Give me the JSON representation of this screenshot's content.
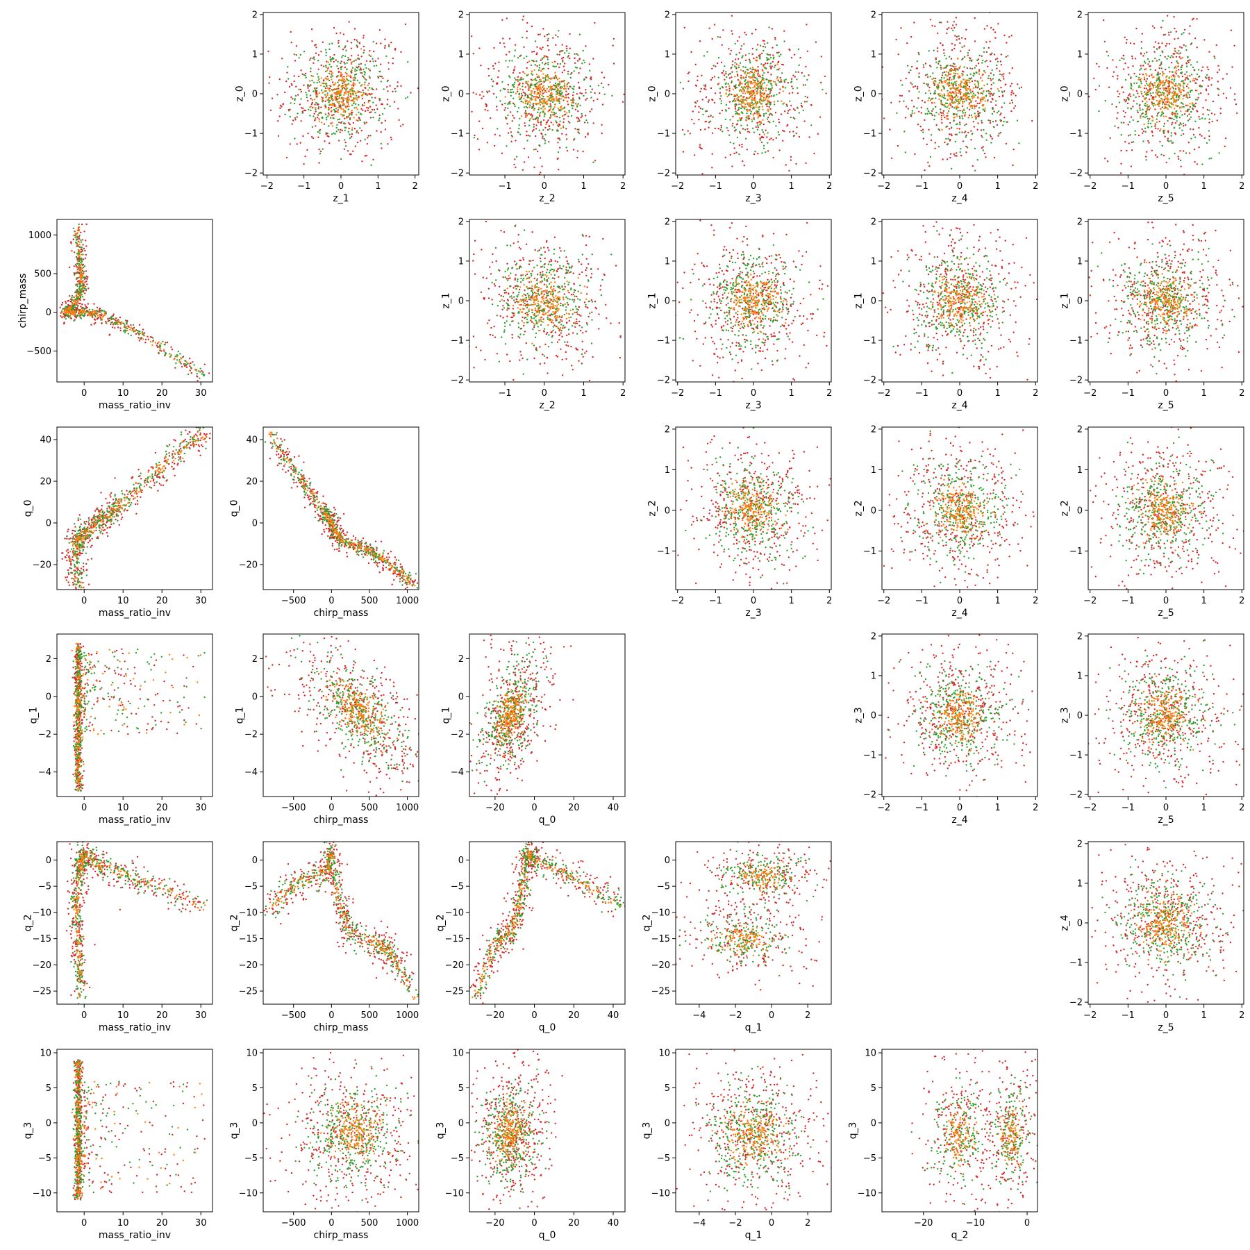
{
  "palette": {
    "red": "#d62728",
    "green": "#2ca02c",
    "orange": "#ff7f0e"
  },
  "chart_data": [
    {
      "type": "scatter",
      "xlabel": "z_1",
      "ylabel": "z_0",
      "xlim": [
        -2.1,
        2.1
      ],
      "ylim": [
        -2.05,
        2.05
      ],
      "xticks": [
        -2,
        -1,
        0,
        1,
        2
      ],
      "yticks": [
        -2,
        -1,
        0,
        1,
        2
      ],
      "distribution": "gaussian-blob",
      "center": [
        0,
        0
      ],
      "spread": [
        0.6,
        0.6
      ]
    },
    {
      "type": "scatter",
      "xlabel": "z_2",
      "ylabel": "z_0",
      "xlim": [
        -1.9,
        2.05
      ],
      "ylim": [
        -2.05,
        2.05
      ],
      "xticks": [
        -1,
        0,
        1,
        2
      ],
      "yticks": [
        -2,
        -1,
        0,
        1,
        2
      ],
      "distribution": "gaussian-blob",
      "center": [
        0,
        0
      ],
      "spread": [
        0.6,
        0.6
      ]
    },
    {
      "type": "scatter",
      "xlabel": "z_3",
      "ylabel": "z_0",
      "xlim": [
        -2.05,
        2.05
      ],
      "ylim": [
        -2.05,
        2.05
      ],
      "xticks": [
        -2,
        -1,
        0,
        1,
        2
      ],
      "yticks": [
        -2,
        -1,
        0,
        1,
        2
      ],
      "distribution": "gaussian-blob",
      "center": [
        0,
        0
      ],
      "spread": [
        0.6,
        0.6
      ]
    },
    {
      "type": "scatter",
      "xlabel": "z_4",
      "ylabel": "z_0",
      "xlim": [
        -2.05,
        2.05
      ],
      "ylim": [
        -2.05,
        2.05
      ],
      "xticks": [
        -2,
        -1,
        0,
        1,
        2
      ],
      "yticks": [
        -2,
        -1,
        0,
        1,
        2
      ],
      "distribution": "gaussian-blob",
      "center": [
        0,
        0
      ],
      "spread": [
        0.6,
        0.6
      ]
    },
    {
      "type": "scatter",
      "xlabel": "z_5",
      "ylabel": "z_0",
      "xlim": [
        -2.05,
        2.05
      ],
      "ylim": [
        -2.05,
        2.05
      ],
      "xticks": [
        -2,
        -1,
        0,
        1,
        2
      ],
      "yticks": [
        -2,
        -1,
        0,
        1,
        2
      ],
      "distribution": "gaussian-blob",
      "center": [
        0,
        0
      ],
      "spread": [
        0.6,
        0.6
      ]
    },
    {
      "type": "scatter",
      "xlabel": "mass_ratio_inv",
      "ylabel": "chirp_mass",
      "xlim": [
        -7,
        33
      ],
      "ylim": [
        -900,
        1200
      ],
      "xticks": [
        0,
        10,
        20,
        30
      ],
      "yticks": [
        -500,
        0,
        500,
        1000
      ],
      "distribution": "polyline",
      "path": [
        [
          -2,
          1100
        ],
        [
          -1,
          600
        ],
        [
          -0.5,
          300
        ],
        [
          -3,
          80
        ],
        [
          -5,
          0
        ],
        [
          0,
          0
        ],
        [
          5,
          -40
        ],
        [
          15,
          -300
        ],
        [
          31,
          -820
        ]
      ],
      "noise": [
        0.6,
        40
      ]
    },
    {
      "type": "scatter",
      "xlabel": "z_2",
      "ylabel": "z_1",
      "xlim": [
        -1.9,
        2.05
      ],
      "ylim": [
        -2.05,
        2.05
      ],
      "xticks": [
        -1,
        0,
        1,
        2
      ],
      "yticks": [
        -2,
        -1,
        0,
        1,
        2
      ],
      "distribution": "gaussian-blob",
      "center": [
        0,
        0
      ],
      "spread": [
        0.6,
        0.6
      ]
    },
    {
      "type": "scatter",
      "xlabel": "z_3",
      "ylabel": "z_1",
      "xlim": [
        -2.05,
        2.05
      ],
      "ylim": [
        -2.05,
        2.05
      ],
      "xticks": [
        -2,
        -1,
        0,
        1,
        2
      ],
      "yticks": [
        -2,
        -1,
        0,
        1,
        2
      ],
      "distribution": "gaussian-blob",
      "center": [
        0,
        0
      ],
      "spread": [
        0.6,
        0.6
      ]
    },
    {
      "type": "scatter",
      "xlabel": "z_4",
      "ylabel": "z_1",
      "xlim": [
        -2.05,
        2.05
      ],
      "ylim": [
        -2.05,
        2.05
      ],
      "xticks": [
        -2,
        -1,
        0,
        1,
        2
      ],
      "yticks": [
        -2,
        -1,
        0,
        1,
        2
      ],
      "distribution": "gaussian-blob",
      "center": [
        0,
        0
      ],
      "spread": [
        0.6,
        0.6
      ]
    },
    {
      "type": "scatter",
      "xlabel": "z_5",
      "ylabel": "z_1",
      "xlim": [
        -2.05,
        2.05
      ],
      "ylim": [
        -2.05,
        2.05
      ],
      "xticks": [
        -2,
        -1,
        0,
        1,
        2
      ],
      "yticks": [
        -2,
        -1,
        0,
        1,
        2
      ],
      "distribution": "gaussian-blob",
      "center": [
        0,
        0
      ],
      "spread": [
        0.6,
        0.6
      ]
    },
    {
      "type": "scatter",
      "xlabel": "mass_ratio_inv",
      "ylabel": "q_0",
      "xlim": [
        -7,
        33
      ],
      "ylim": [
        -32,
        46
      ],
      "xticks": [
        0,
        10,
        20,
        30
      ],
      "yticks": [
        -20,
        0,
        20,
        40
      ],
      "distribution": "polyline",
      "path": [
        [
          -2,
          -30
        ],
        [
          -2,
          -10
        ],
        [
          0,
          -5
        ],
        [
          5,
          2
        ],
        [
          10,
          10
        ],
        [
          20,
          27
        ],
        [
          31,
          43
        ]
      ],
      "noise": [
        1.2,
        2.5
      ]
    },
    {
      "type": "scatter",
      "xlabel": "chirp_mass",
      "ylabel": "q_0",
      "xlim": [
        -900,
        1150
      ],
      "ylim": [
        -32,
        46
      ],
      "xticks": [
        -500,
        0,
        500,
        1000
      ],
      "yticks": [
        -20,
        0,
        20,
        40
      ],
      "distribution": "polyline",
      "path": [
        [
          -820,
          43
        ],
        [
          -400,
          20
        ],
        [
          -100,
          5
        ],
        [
          0,
          0
        ],
        [
          100,
          -8
        ],
        [
          400,
          -12
        ],
        [
          700,
          -18
        ],
        [
          1100,
          -30
        ]
      ],
      "noise": [
        40,
        2
      ]
    },
    {
      "type": "scatter",
      "xlabel": "z_3",
      "ylabel": "z_2",
      "xlim": [
        -2.05,
        2.05
      ],
      "ylim": [
        -1.95,
        2.05
      ],
      "xticks": [
        -2,
        -1,
        0,
        1,
        2
      ],
      "yticks": [
        -1,
        0,
        1,
        2
      ],
      "distribution": "gaussian-blob",
      "center": [
        0,
        0
      ],
      "spread": [
        0.6,
        0.6
      ]
    },
    {
      "type": "scatter",
      "xlabel": "z_4",
      "ylabel": "z_2",
      "xlim": [
        -2.05,
        2.05
      ],
      "ylim": [
        -1.95,
        2.05
      ],
      "xticks": [
        -2,
        -1,
        0,
        1,
        2
      ],
      "yticks": [
        -1,
        0,
        1,
        2
      ],
      "distribution": "gaussian-blob",
      "center": [
        0,
        0
      ],
      "spread": [
        0.6,
        0.6
      ]
    },
    {
      "type": "scatter",
      "xlabel": "z_5",
      "ylabel": "z_2",
      "xlim": [
        -2.05,
        2.05
      ],
      "ylim": [
        -1.95,
        2.05
      ],
      "xticks": [
        -2,
        -1,
        0,
        1,
        2
      ],
      "yticks": [
        -1,
        0,
        1,
        2
      ],
      "distribution": "gaussian-blob",
      "center": [
        0,
        0
      ],
      "spread": [
        0.6,
        0.6
      ]
    },
    {
      "type": "scatter",
      "xlabel": "mass_ratio_inv",
      "ylabel": "q_1",
      "xlim": [
        -7,
        33
      ],
      "ylim": [
        -5.3,
        3.3
      ],
      "xticks": [
        0,
        10,
        20,
        30
      ],
      "yticks": [
        -4,
        -2,
        0,
        2
      ],
      "distribution": "vertical-band-plus-cloud",
      "band_x": -1.5,
      "band_y": [
        -5,
        2.8
      ],
      "cloud_x": [
        0,
        31
      ],
      "cloud_y": [
        -2,
        2.5
      ]
    },
    {
      "type": "scatter",
      "xlabel": "chirp_mass",
      "ylabel": "q_1",
      "xlim": [
        -900,
        1150
      ],
      "ylim": [
        -5.3,
        3.3
      ],
      "xticks": [
        -500,
        0,
        500,
        1000
      ],
      "yticks": [
        -4,
        -2,
        0,
        2
      ],
      "distribution": "correlated-blob",
      "center": [
        350,
        -0.8
      ],
      "spread": [
        330,
        1.1
      ],
      "slope": -0.0025
    },
    {
      "type": "scatter",
      "xlabel": "q_0",
      "ylabel": "q_1",
      "xlim": [
        -33,
        46
      ],
      "ylim": [
        -5.3,
        3.3
      ],
      "xticks": [
        -20,
        0,
        20,
        40
      ],
      "yticks": [
        -4,
        -2,
        0,
        2
      ],
      "distribution": "correlated-blob",
      "center": [
        -12,
        -1
      ],
      "spread": [
        7,
        1.2
      ],
      "slope": 0.09
    },
    {
      "type": "scatter",
      "xlabel": "z_4",
      "ylabel": "z_3",
      "xlim": [
        -2.05,
        2.05
      ],
      "ylim": [
        -2.05,
        2.05
      ],
      "xticks": [
        -2,
        -1,
        0,
        1,
        2
      ],
      "yticks": [
        -2,
        -1,
        0,
        1,
        2
      ],
      "distribution": "gaussian-blob",
      "center": [
        0,
        0
      ],
      "spread": [
        0.6,
        0.6
      ]
    },
    {
      "type": "scatter",
      "xlabel": "z_5",
      "ylabel": "z_3",
      "xlim": [
        -2.05,
        2.05
      ],
      "ylim": [
        -2.05,
        2.05
      ],
      "xticks": [
        -2,
        -1,
        0,
        1,
        2
      ],
      "yticks": [
        -2,
        -1,
        0,
        1,
        2
      ],
      "distribution": "gaussian-blob",
      "center": [
        0,
        0
      ],
      "spread": [
        0.6,
        0.6
      ]
    },
    {
      "type": "scatter",
      "xlabel": "mass_ratio_inv",
      "ylabel": "q_2",
      "xlim": [
        -7,
        33
      ],
      "ylim": [
        -27.5,
        3.5
      ],
      "xticks": [
        0,
        10,
        20,
        30
      ],
      "yticks": [
        -25,
        -20,
        -15,
        -10,
        -5,
        0
      ],
      "distribution": "polyline",
      "path": [
        [
          -1,
          -26
        ],
        [
          -1.5,
          -15
        ],
        [
          -2,
          -8
        ],
        [
          -1,
          -1
        ],
        [
          0,
          1
        ],
        [
          5,
          -1.5
        ],
        [
          15,
          -4
        ],
        [
          31,
          -9
        ]
      ],
      "noise": [
        0.8,
        1.0
      ]
    },
    {
      "type": "scatter",
      "xlabel": "chirp_mass",
      "ylabel": "q_2",
      "xlim": [
        -900,
        1150
      ],
      "ylim": [
        -27.5,
        3.5
      ],
      "xticks": [
        -500,
        0,
        500,
        1000
      ],
      "yticks": [
        -25,
        -20,
        -15,
        -10,
        -5,
        0
      ],
      "distribution": "polyline",
      "path": [
        [
          -820,
          -9
        ],
        [
          -400,
          -4
        ],
        [
          -50,
          -2
        ],
        [
          0,
          2
        ],
        [
          100,
          -8
        ],
        [
          250,
          -14
        ],
        [
          600,
          -16
        ],
        [
          800,
          -18
        ],
        [
          1100,
          -26
        ]
      ],
      "noise": [
        40,
        1.2
      ]
    },
    {
      "type": "scatter",
      "xlabel": "q_0",
      "ylabel": "q_2",
      "xlim": [
        -33,
        46
      ],
      "ylim": [
        -27.5,
        3.5
      ],
      "xticks": [
        -20,
        0,
        20,
        40
      ],
      "yticks": [
        -25,
        -20,
        -15,
        -10,
        -5,
        0
      ],
      "distribution": "polyline",
      "path": [
        [
          -30,
          -26
        ],
        [
          -20,
          -16
        ],
        [
          -12,
          -14
        ],
        [
          -7,
          -8
        ],
        [
          -4,
          1
        ],
        [
          0,
          0
        ],
        [
          20,
          -3
        ],
        [
          44,
          -9
        ]
      ],
      "noise": [
        2,
        1.2
      ]
    },
    {
      "type": "scatter",
      "xlabel": "q_1",
      "ylabel": "q_2",
      "xlim": [
        -5.3,
        3.3
      ],
      "ylim": [
        -27.5,
        3.5
      ],
      "xticks": [
        -4,
        -2,
        0,
        2
      ],
      "yticks": [
        -25,
        -20,
        -15,
        -10,
        -5,
        0
      ],
      "distribution": "two-clusters",
      "clusters": [
        [
          -0.5,
          -3,
          1.2,
          2
        ],
        [
          -1.5,
          -15,
          1.3,
          2.5
        ]
      ]
    },
    {
      "type": "scatter",
      "xlabel": "z_5",
      "ylabel": "z_4",
      "xlim": [
        -2.05,
        2.05
      ],
      "ylim": [
        -2.05,
        2.05
      ],
      "xticks": [
        -2,
        -1,
        0,
        1,
        2
      ],
      "yticks": [
        -2,
        -1,
        0,
        1,
        2
      ],
      "distribution": "gaussian-blob",
      "center": [
        0,
        0
      ],
      "spread": [
        0.6,
        0.6
      ]
    },
    {
      "type": "scatter",
      "xlabel": "mass_ratio_inv",
      "ylabel": "q_3",
      "xlim": [
        -7,
        33
      ],
      "ylim": [
        -12.7,
        10.5
      ],
      "xticks": [
        0,
        10,
        20,
        30
      ],
      "yticks": [
        -10,
        -5,
        0,
        5,
        10
      ],
      "distribution": "vertical-band-plus-cloud",
      "band_x": -1.5,
      "band_y": [
        -11,
        9
      ],
      "cloud_x": [
        0,
        31
      ],
      "cloud_y": [
        -10,
        6
      ]
    },
    {
      "type": "scatter",
      "xlabel": "chirp_mass",
      "ylabel": "q_3",
      "xlim": [
        -900,
        1150
      ],
      "ylim": [
        -12.7,
        10.5
      ],
      "xticks": [
        -500,
        0,
        500,
        1000
      ],
      "yticks": [
        -10,
        -5,
        0,
        5,
        10
      ],
      "distribution": "correlated-blob",
      "center": [
        300,
        -1.5
      ],
      "spread": [
        330,
        3.5
      ],
      "slope": 0
    },
    {
      "type": "scatter",
      "xlabel": "q_0",
      "ylabel": "q_3",
      "xlim": [
        -33,
        46
      ],
      "ylim": [
        -12.7,
        10.5
      ],
      "xticks": [
        -20,
        0,
        20,
        40
      ],
      "yticks": [
        -10,
        -5,
        0,
        5,
        10
      ],
      "distribution": "correlated-blob",
      "center": [
        -12,
        -1.5
      ],
      "spread": [
        7,
        3.5
      ],
      "slope": 0
    },
    {
      "type": "scatter",
      "xlabel": "q_1",
      "ylabel": "q_3",
      "xlim": [
        -5.3,
        3.3
      ],
      "ylim": [
        -12.7,
        10.5
      ],
      "xticks": [
        -4,
        -2,
        0,
        2
      ],
      "yticks": [
        -10,
        -5,
        0,
        5,
        10
      ],
      "distribution": "correlated-blob",
      "center": [
        -1,
        -1.5
      ],
      "spread": [
        1.3,
        3.5
      ],
      "slope": 0
    },
    {
      "type": "scatter",
      "xlabel": "q_2",
      "ylabel": "q_3",
      "xlim": [
        -28,
        2
      ],
      "ylim": [
        -12.7,
        10.5
      ],
      "xticks": [
        -20,
        -10,
        0
      ],
      "yticks": [
        -10,
        -5,
        0,
        5,
        10
      ],
      "distribution": "two-clusters",
      "clusters": [
        [
          -13,
          -1.5,
          2.5,
          3.5
        ],
        [
          -3,
          -1.5,
          2,
          3.5
        ]
      ]
    }
  ]
}
